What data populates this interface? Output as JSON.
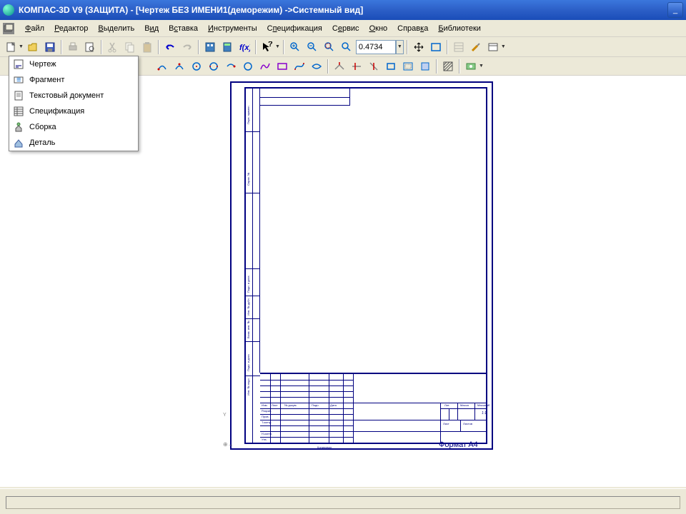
{
  "window": {
    "title": "КОМПАС-3D V9 (ЗАЩИТА) - [Чертеж БЕЗ ИМЕНИ1(деморежим) ->Системный вид]",
    "minimize": "_"
  },
  "menu": {
    "items": [
      {
        "label": "Файл",
        "u": "Ф"
      },
      {
        "label": "Редактор",
        "u": "Р"
      },
      {
        "label": "Выделить",
        "u": "В"
      },
      {
        "label": "Вид",
        "u": "и"
      },
      {
        "label": "Вставка",
        "u": "с"
      },
      {
        "label": "Инструменты",
        "u": "И"
      },
      {
        "label": "Спецификация",
        "u": "п"
      },
      {
        "label": "Сервис",
        "u": "е"
      },
      {
        "label": "Окно",
        "u": "О"
      },
      {
        "label": "Справка",
        "u": "к"
      },
      {
        "label": "Библиотеки",
        "u": "Б"
      }
    ]
  },
  "dropdown": {
    "items": [
      {
        "label": "Чертеж"
      },
      {
        "label": "Фрагмент"
      },
      {
        "label": "Текстовый документ"
      },
      {
        "label": "Спецификация"
      },
      {
        "label": "Сборка"
      },
      {
        "label": "Деталь"
      }
    ]
  },
  "toolbar": {
    "zoom_value": "0.4734"
  },
  "titleblock": {
    "rows": [
      "Разраб.",
      "Пров.",
      "Т.контр.",
      "Н.контр.",
      "Утв."
    ],
    "izm": "Изм.",
    "list": "Лист",
    "ndok": "№ докум.",
    "podp": "Подп.",
    "data": "Дата",
    "lit": "Лит.",
    "massa": "Масса",
    "masshtab": "Масштаб",
    "scale": "1:1",
    "list2": "Лист",
    "listov": "Листов",
    "listov_n": "1",
    "kopiroval": "Копировал",
    "format": "Формат",
    "format_v": "A4",
    "side1": "Перв. примен.",
    "side2": "Справ. №",
    "side3": "Подп. и дата",
    "side4": "Инв. № дубл.",
    "side5": "Взам. инв. №",
    "side6": "Подп. и дата",
    "side7": "Инв. № подл."
  }
}
